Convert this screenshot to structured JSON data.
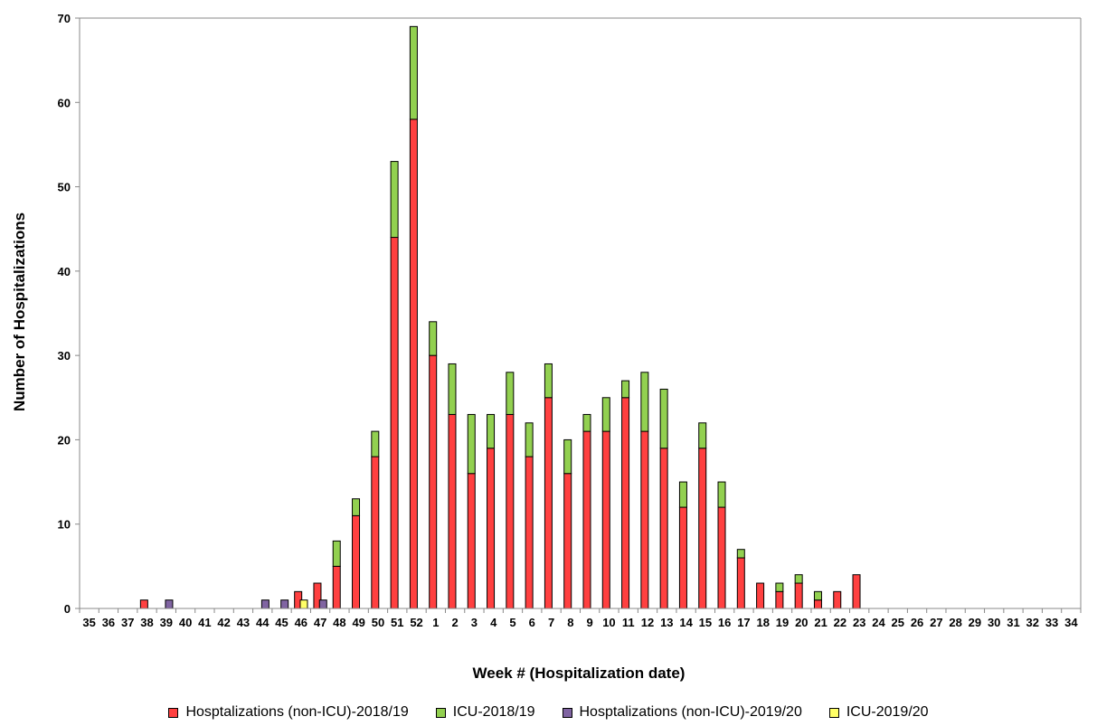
{
  "chart_data": {
    "type": "bar",
    "stacked": true,
    "title": "",
    "xlabel": "Week # (Hospitalization date)",
    "ylabel": "Number of Hospitalizations",
    "ylim": [
      0,
      70
    ],
    "yticks": [
      0,
      10,
      20,
      30,
      40,
      50,
      60,
      70
    ],
    "grid": false,
    "legend_position": "bottom",
    "categories": [
      "35",
      "36",
      "37",
      "38",
      "39",
      "40",
      "41",
      "42",
      "43",
      "44",
      "45",
      "46",
      "47",
      "48",
      "49",
      "50",
      "51",
      "52",
      "1",
      "2",
      "3",
      "4",
      "5",
      "6",
      "7",
      "8",
      "9",
      "10",
      "11",
      "12",
      "13",
      "14",
      "15",
      "16",
      "17",
      "18",
      "19",
      "20",
      "21",
      "22",
      "23",
      "24",
      "25",
      "26",
      "27",
      "28",
      "29",
      "30",
      "31",
      "32",
      "33",
      "34"
    ],
    "series": [
      {
        "name": "Hosptalizations (non-ICU)-2018/19",
        "color": "#ff4040",
        "stack": "2018/19",
        "values": [
          0,
          0,
          0,
          1,
          0,
          0,
          0,
          0,
          0,
          0,
          0,
          2,
          3,
          5,
          11,
          18,
          44,
          58,
          30,
          23,
          16,
          19,
          23,
          18,
          25,
          16,
          21,
          21,
          25,
          21,
          19,
          12,
          19,
          12,
          6,
          3,
          2,
          3,
          1,
          2,
          4,
          0,
          0,
          0,
          0,
          0,
          0,
          0,
          0,
          0,
          0,
          0
        ]
      },
      {
        "name": "ICU-2018/19",
        "color": "#92d050",
        "stack": "2018/19",
        "values": [
          0,
          0,
          0,
          0,
          0,
          0,
          0,
          0,
          0,
          0,
          0,
          0,
          0,
          3,
          2,
          3,
          9,
          11,
          4,
          6,
          7,
          4,
          5,
          4,
          4,
          4,
          2,
          4,
          2,
          7,
          7,
          3,
          3,
          3,
          1,
          0,
          1,
          1,
          1,
          0,
          0,
          0,
          0,
          0,
          0,
          0,
          0,
          0,
          0,
          0,
          0,
          0
        ]
      },
      {
        "name": "Hosptalizations (non-ICU)-2019/20",
        "color": "#8064a2",
        "stack": "2019/20",
        "values": [
          0,
          0,
          0,
          0,
          1,
          0,
          0,
          0,
          0,
          1,
          1,
          0,
          1,
          0,
          0,
          0,
          0,
          0,
          0,
          0,
          0,
          0,
          0,
          0,
          0,
          0,
          0,
          0,
          0,
          0,
          0,
          0,
          0,
          0,
          0,
          0,
          0,
          0,
          0,
          0,
          0,
          0,
          0,
          0,
          0,
          0,
          0,
          0,
          0,
          0,
          0,
          0
        ]
      },
      {
        "name": "ICU-2019/20",
        "color": "#ffff66",
        "stack": "2019/20",
        "values": [
          0,
          0,
          0,
          0,
          0,
          0,
          0,
          0,
          0,
          0,
          0,
          1,
          0,
          0,
          0,
          0,
          0,
          0,
          0,
          0,
          0,
          0,
          0,
          0,
          0,
          0,
          0,
          0,
          0,
          0,
          0,
          0,
          0,
          0,
          0,
          0,
          0,
          0,
          0,
          0,
          0,
          0,
          0,
          0,
          0,
          0,
          0,
          0,
          0,
          0,
          0,
          0
        ]
      }
    ]
  }
}
